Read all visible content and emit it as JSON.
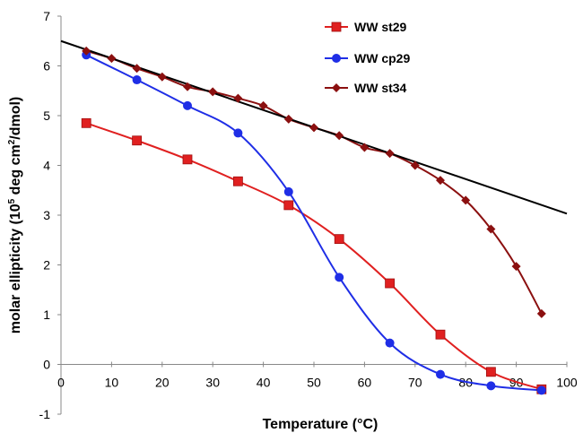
{
  "chart_data": {
    "type": "line",
    "title": "",
    "xlabel": "Temperature (°C)",
    "ylabel_main": "molar ellipticity (10",
    "ylabel_sup": "5",
    "ylabel_mid": " deg cm",
    "ylabel_sup2": "2",
    "ylabel_end": "/dmol)",
    "xlim": [
      0,
      100
    ],
    "ylim": [
      -1,
      7
    ],
    "xticks": [
      "0",
      "10",
      "20",
      "30",
      "40",
      "50",
      "60",
      "70",
      "80",
      "90",
      "100"
    ],
    "yticks": [
      "-1",
      "0",
      "1",
      "2",
      "3",
      "4",
      "5",
      "6",
      "7"
    ],
    "grid": false,
    "legend_position": "top-right",
    "series": [
      {
        "name": "WW st29",
        "color": "#e02020",
        "marker": "square",
        "x": [
          5,
          15,
          25,
          35,
          45,
          55,
          65,
          75,
          85,
          95
        ],
        "y": [
          4.85,
          4.5,
          4.12,
          3.68,
          3.2,
          2.52,
          1.63,
          0.6,
          -0.15,
          -0.5
        ]
      },
      {
        "name": "WW cp29",
        "color": "#1f2ee6",
        "marker": "circle",
        "x": [
          5,
          15,
          25,
          35,
          45,
          55,
          65,
          75,
          85,
          95
        ],
        "y": [
          6.22,
          5.72,
          5.2,
          4.65,
          3.47,
          1.75,
          0.43,
          -0.2,
          -0.43,
          -0.52
        ]
      },
      {
        "name": "WW st34",
        "color": "#8b1010",
        "marker": "diamond",
        "x": [
          5,
          10,
          15,
          20,
          25,
          30,
          35,
          40,
          45,
          50,
          55,
          60,
          65,
          70,
          75,
          80,
          85,
          90,
          95
        ],
        "y": [
          6.3,
          6.15,
          5.95,
          5.78,
          5.58,
          5.48,
          5.35,
          5.2,
          4.93,
          4.76,
          4.6,
          4.36,
          4.24,
          4.0,
          3.7,
          3.3,
          2.72,
          1.97,
          1.02
        ]
      }
    ],
    "trendline": {
      "color": "#000000",
      "x": [
        0,
        100
      ],
      "y": [
        6.5,
        3.03
      ]
    }
  }
}
